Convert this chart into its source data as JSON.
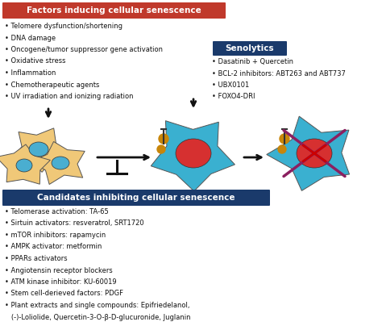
{
  "bg_color": "#ffffff",
  "top_box": {
    "label": "Factors inducing cellular senescence",
    "bg": "#c0392b",
    "text_color": "#ffffff"
  },
  "senolytics_box": {
    "label": "Senolytics",
    "bg": "#1a3a6b",
    "text_color": "#ffffff"
  },
  "bottom_box": {
    "label": "Candidates inhibiting cellular senescence",
    "bg": "#1a3a6b",
    "text_color": "#ffffff"
  },
  "top_bullets": [
    "• Telomere dysfunction/shortening",
    "• DNA damage",
    "• Oncogene/tumor suppressor gene activation",
    "• Oxidative stress",
    "• Inflammation",
    "• Chemotherapeutic agents",
    "• UV irradiation and ionizing radiation"
  ],
  "senolytics_bullets": [
    "• Dasatinib + Quercetin",
    "• BCL-2 inhibitors: ABT263 and ABT737",
    "• UBX0101",
    "• FOXO4-DRI"
  ],
  "bottom_bullets": [
    "• Telomerase activation: TA-65",
    "• Sirtuin activators: resveratrol, SRT1720",
    "• mTOR inhibitors: rapamycin",
    "• AMPK activator: metformin",
    "• PPARs activators",
    "• Angiotensin receptor blockers",
    "• ATM kinase inhibitor: KU-60019",
    "• Stem cell-derieved factors: PDGF",
    "• Plant extracts and single compounds: Epifriedelanol,",
    "   (-)-Loliolide, Quercetin-3-O-β-D-glucuronide, Juglanin"
  ],
  "normal_cell_color": "#f0c878",
  "normal_nucleus_color": "#4aaed0",
  "senescent_cell_color": "#3ab0d0",
  "senescent_nucleus_color": "#d63030",
  "arrow_color": "#111111",
  "cross_color": "#8b2060",
  "sasp_color": "#c8860a",
  "font_size_bullets": 6.0,
  "font_size_box": 7.5
}
